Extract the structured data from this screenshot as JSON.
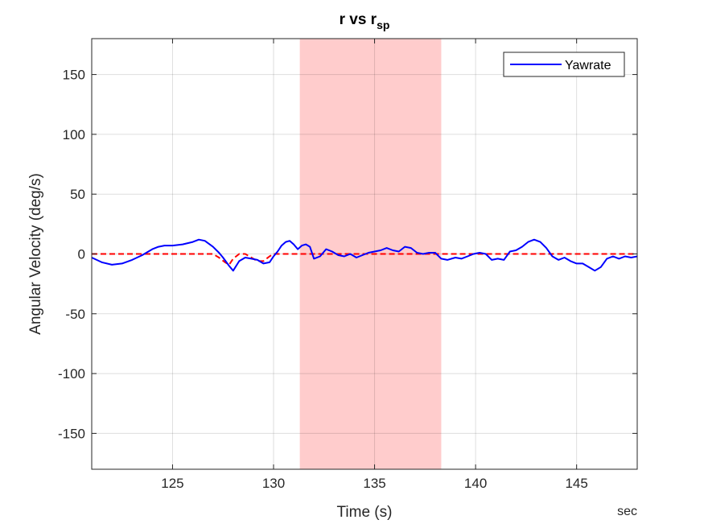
{
  "chart_data": {
    "type": "line",
    "title": "r vs r",
    "title_subscript": "sp",
    "xlabel": "Time (s)",
    "ylabel": "Angular Velocity (deg/s)",
    "x_unit_label": "sec",
    "xlim": [
      121,
      148
    ],
    "ylim": [
      -180,
      180
    ],
    "xticks": [
      125,
      130,
      135,
      140,
      145
    ],
    "yticks": [
      -150,
      -100,
      -50,
      0,
      50,
      100,
      150
    ],
    "grid": true,
    "legend": {
      "placement": "top-right",
      "entries": [
        "Yawrate"
      ]
    },
    "highlight_region": {
      "x_start": 131.3,
      "x_end": 138.3,
      "color": "#ffcccc"
    },
    "colors": {
      "yawrate": "#0000ff",
      "setpoint": "#ff0000"
    },
    "series": [
      {
        "name": "Yawrate",
        "style": "solid",
        "x": [
          121,
          121.5,
          122,
          122.5,
          123,
          123.5,
          124,
          124.3,
          124.6,
          125,
          125.5,
          126,
          126.3,
          126.6,
          127,
          127.3,
          127.5,
          127.8,
          128,
          128.3,
          128.6,
          128.9,
          129.2,
          129.5,
          129.8,
          130,
          130.2,
          130.4,
          130.6,
          130.8,
          131,
          131.2,
          131.4,
          131.6,
          131.8,
          132,
          132.3,
          132.6,
          132.9,
          133.2,
          133.5,
          133.8,
          134.1,
          134.4,
          134.7,
          135,
          135.3,
          135.6,
          135.9,
          136.2,
          136.5,
          136.8,
          137.1,
          137.4,
          137.7,
          138,
          138.3,
          138.6,
          139,
          139.3,
          139.6,
          139.9,
          140.2,
          140.5,
          140.8,
          141.1,
          141.4,
          141.7,
          142,
          142.3,
          142.6,
          142.9,
          143.2,
          143.5,
          143.8,
          144.1,
          144.4,
          144.7,
          145,
          145.3,
          145.6,
          145.9,
          146.2,
          146.5,
          146.8,
          147.1,
          147.4,
          147.7,
          148
        ],
        "y": [
          -3,
          -7,
          -9,
          -8,
          -5,
          -1,
          4,
          6,
          7,
          7,
          8,
          10,
          12,
          11,
          6,
          1,
          -3,
          -10,
          -14,
          -6,
          -3,
          -4,
          -5,
          -8,
          -7,
          -2,
          2,
          7,
          10,
          11,
          8,
          4,
          7,
          8,
          6,
          -4,
          -2,
          4,
          2,
          -1,
          -2,
          0,
          -3,
          -1,
          1,
          2,
          3,
          5,
          3,
          2,
          6,
          5,
          1,
          0,
          1,
          1,
          -4,
          -5,
          -3,
          -4,
          -2,
          0,
          1,
          0,
          -5,
          -4,
          -5,
          2,
          3,
          6,
          10,
          12,
          10,
          5,
          -2,
          -5,
          -3,
          -6,
          -8,
          -8,
          -11,
          -14,
          -11,
          -4,
          -2,
          -4,
          -2,
          -3,
          -2
        ]
      },
      {
        "name": "",
        "style": "dashed",
        "x": [
          121,
          127,
          127.3,
          127.6,
          127.8,
          128,
          128.3,
          128.6,
          128.9,
          129.2,
          129.5,
          129.8,
          130,
          148
        ],
        "y": [
          0,
          0,
          -3,
          -7,
          -9,
          -4,
          0,
          0,
          -3,
          -6,
          -6,
          -2,
          0,
          0
        ]
      }
    ]
  }
}
